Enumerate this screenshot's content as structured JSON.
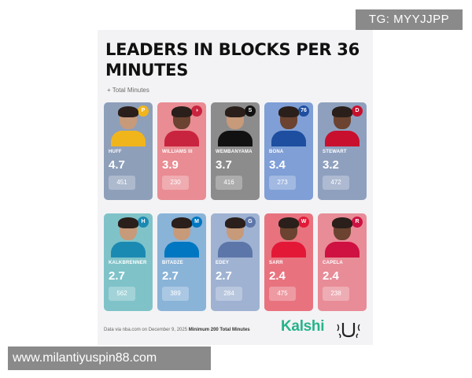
{
  "watermarks": {
    "top": "TG: MYYJJPP",
    "bottom": "www.milantiyuspin88.com"
  },
  "header": {
    "title": "LEADERS IN BLOCKS PER 36 MINUTES",
    "subtitle": "+ Total Minutes"
  },
  "players": [
    {
      "name": "HUFF",
      "stat": "4.7",
      "minutes": "451",
      "team_color": "#f1b51c",
      "team_glyph": "P",
      "bg": "#8e9fba"
    },
    {
      "name": "WILLIAMS III",
      "stat": "3.9",
      "minutes": "230",
      "team_color": "#c9243f",
      "team_glyph": "◑",
      "bg": "#e98c93"
    },
    {
      "name": "WEMBANYAMA",
      "stat": "3.7",
      "minutes": "416",
      "team_color": "#111111",
      "team_glyph": "S",
      "bg": "#8c8c8c"
    },
    {
      "name": "BONA",
      "stat": "3.4",
      "minutes": "273",
      "team_color": "#1d4ea0",
      "team_glyph": "76",
      "bg": "#7f9fd6"
    },
    {
      "name": "STEWART",
      "stat": "3.2",
      "minutes": "472",
      "team_color": "#c8102e",
      "team_glyph": "D",
      "bg": "#8fa0bf"
    },
    {
      "name": "KALKBRENNER",
      "stat": "2.7",
      "minutes": "562",
      "team_color": "#1b8ab3",
      "team_glyph": "H",
      "bg": "#7fc3c9"
    },
    {
      "name": "BITADZE",
      "stat": "2.7",
      "minutes": "389",
      "team_color": "#0077c0",
      "team_glyph": "M",
      "bg": "#8ab3d8"
    },
    {
      "name": "EDEY",
      "stat": "2.7",
      "minutes": "284",
      "team_color": "#5d76a9",
      "team_glyph": "G",
      "bg": "#9fb2d2"
    },
    {
      "name": "SARR",
      "stat": "2.4",
      "minutes": "475",
      "team_color": "#e31837",
      "team_glyph": "W",
      "bg": "#e8737f"
    },
    {
      "name": "CAPELA",
      "stat": "2.4",
      "minutes": "238",
      "team_color": "#ce1141",
      "team_glyph": "R",
      "bg": "#e88c98"
    }
  ],
  "footer": {
    "source": "Data via nba.com on December 9, 2025",
    "qualifier": "Minimum 200 Total Minutes",
    "brand": "Kalshi"
  },
  "colors": {
    "skin": "#c79a7a",
    "skin_dark": "#6b4330",
    "hair": "#2a1f1a",
    "brand": "#27b38a"
  }
}
